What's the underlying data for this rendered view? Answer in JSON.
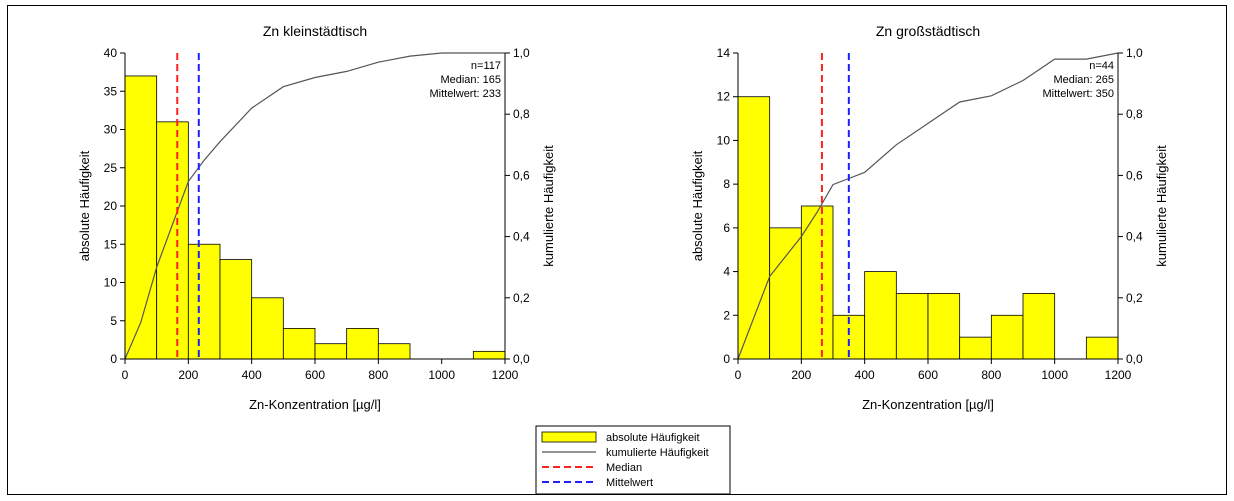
{
  "chart_data": [
    {
      "type": "bar",
      "title": "Zn kleinstädtisch",
      "xlabel": "Zn-Konzentration [µg/l]",
      "ylabel": "absolute Häufigkeit",
      "y2label": "kumulierte Häufigkeit",
      "xlim": [
        0,
        1200
      ],
      "ylim": [
        0,
        40
      ],
      "y2lim": [
        0,
        1.0
      ],
      "x_ticks": [
        "0",
        "200",
        "400",
        "600",
        "800",
        "1000",
        "1200"
      ],
      "y_ticks": [
        "0",
        "5",
        "10",
        "15",
        "20",
        "25",
        "30",
        "35",
        "40"
      ],
      "y2_ticks": [
        "0,0",
        "0,2",
        "0,4",
        "0,6",
        "0,8",
        "1,0"
      ],
      "bins": [
        {
          "x0": 0,
          "x1": 100,
          "count": 37
        },
        {
          "x0": 100,
          "x1": 200,
          "count": 31
        },
        {
          "x0": 200,
          "x1": 300,
          "count": 15
        },
        {
          "x0": 300,
          "x1": 400,
          "count": 13
        },
        {
          "x0": 400,
          "x1": 500,
          "count": 8
        },
        {
          "x0": 500,
          "x1": 600,
          "count": 4
        },
        {
          "x0": 600,
          "x1": 700,
          "count": 2
        },
        {
          "x0": 700,
          "x1": 800,
          "count": 4
        },
        {
          "x0": 800,
          "x1": 900,
          "count": 2
        },
        {
          "x0": 1100,
          "x1": 1200,
          "count": 1
        }
      ],
      "cumulative": [
        [
          0,
          0.0
        ],
        [
          50,
          0.12
        ],
        [
          100,
          0.3
        ],
        [
          200,
          0.58
        ],
        [
          250,
          0.65
        ],
        [
          300,
          0.71
        ],
        [
          400,
          0.82
        ],
        [
          500,
          0.89
        ],
        [
          600,
          0.92
        ],
        [
          700,
          0.94
        ],
        [
          800,
          0.97
        ],
        [
          900,
          0.99
        ],
        [
          1000,
          1.0
        ],
        [
          1100,
          1.0
        ],
        [
          1200,
          1.0
        ]
      ],
      "median": 165,
      "mean": 233,
      "annotation": [
        "n=117",
        "Median: 165",
        "Mittelwert: 233"
      ]
    },
    {
      "type": "bar",
      "title": "Zn großstädtisch",
      "xlabel": "Zn-Konzentration [µg/l]",
      "ylabel": "absolute Häufigkeit",
      "y2label": "kumulierte Häufigkeit",
      "xlim": [
        0,
        1200
      ],
      "ylim": [
        0,
        14
      ],
      "y2lim": [
        0,
        1.0
      ],
      "x_ticks": [
        "0",
        "200",
        "400",
        "600",
        "800",
        "1000",
        "1200"
      ],
      "y_ticks": [
        "0",
        "2",
        "4",
        "6",
        "8",
        "10",
        "12",
        "14"
      ],
      "y2_ticks": [
        "0,0",
        "0,2",
        "0,4",
        "0,6",
        "0,8",
        "1,0"
      ],
      "bins": [
        {
          "x0": 0,
          "x1": 100,
          "count": 12
        },
        {
          "x0": 100,
          "x1": 200,
          "count": 6
        },
        {
          "x0": 200,
          "x1": 300,
          "count": 7
        },
        {
          "x0": 300,
          "x1": 400,
          "count": 2
        },
        {
          "x0": 400,
          "x1": 500,
          "count": 4
        },
        {
          "x0": 500,
          "x1": 600,
          "count": 3
        },
        {
          "x0": 600,
          "x1": 700,
          "count": 3
        },
        {
          "x0": 700,
          "x1": 800,
          "count": 1
        },
        {
          "x0": 800,
          "x1": 900,
          "count": 2
        },
        {
          "x0": 900,
          "x1": 1000,
          "count": 3
        },
        {
          "x0": 1100,
          "x1": 1200,
          "count": 1
        }
      ],
      "cumulative": [
        [
          0,
          0.0
        ],
        [
          100,
          0.27
        ],
        [
          200,
          0.4
        ],
        [
          250,
          0.48
        ],
        [
          300,
          0.57
        ],
        [
          350,
          0.59
        ],
        [
          400,
          0.61
        ],
        [
          500,
          0.7
        ],
        [
          600,
          0.77
        ],
        [
          700,
          0.84
        ],
        [
          800,
          0.86
        ],
        [
          900,
          0.91
        ],
        [
          1000,
          0.98
        ],
        [
          1100,
          0.98
        ],
        [
          1200,
          1.0
        ]
      ],
      "median": 265,
      "mean": 350,
      "annotation": [
        "n=44",
        "Median: 265",
        "Mittelwert: 350"
      ]
    }
  ],
  "legend": {
    "items": [
      {
        "label": "absolute Häufigkeit",
        "kind": "bar"
      },
      {
        "label": "kumulierte Häufigkeit",
        "kind": "line"
      },
      {
        "label": "Median",
        "kind": "dash-red"
      },
      {
        "label": "Mittelwert",
        "kind": "dash-blue"
      }
    ]
  },
  "colors": {
    "bar_fill": "#ffff00",
    "bar_stroke": "#000000",
    "cumulative_line": "#555555",
    "median": "#ff2020",
    "mean": "#2020ff"
  }
}
